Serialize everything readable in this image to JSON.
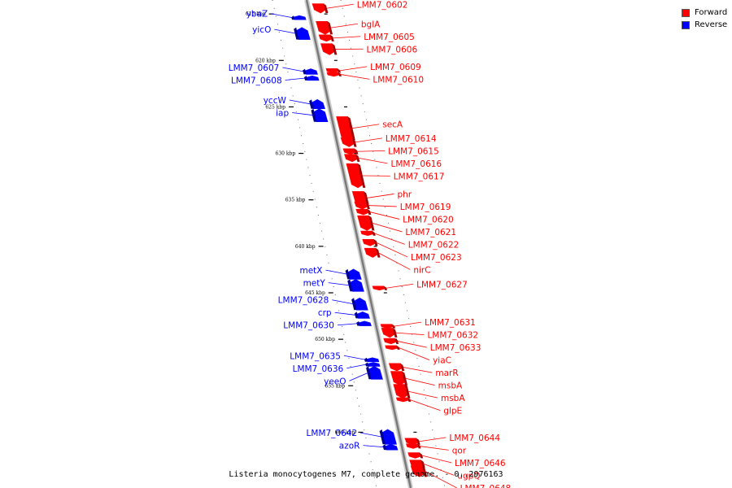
{
  "caption": "Listeria monocytogenes M7, complete genome. - 0..2976163",
  "legend": [
    {
      "label": "Forward",
      "color": "#ff0000"
    },
    {
      "label": "Reverse",
      "color": "#0000ff"
    }
  ],
  "colors": {
    "forward": "#ff0000",
    "reverse": "#0000ff",
    "backbone": "#999999"
  },
  "ticks": [
    {
      "kbp": 615,
      "label": "615 kbp"
    },
    {
      "kbp": 620,
      "label": "620 kbp"
    },
    {
      "kbp": 625,
      "label": "625 kbp"
    },
    {
      "kbp": 630,
      "label": "630 kbp"
    },
    {
      "kbp": 635,
      "label": "635 kbp"
    },
    {
      "kbp": 640,
      "label": "640 kbp"
    },
    {
      "kbp": 645,
      "label": "645 kbp"
    },
    {
      "kbp": 650,
      "label": "650 kbp"
    },
    {
      "kbp": 655,
      "label": "655 kbp"
    },
    {
      "kbp": 660,
      "label": "660 kbp"
    }
  ],
  "genes": [
    {
      "name": "LMM7_0602",
      "strand": "forward",
      "kbp": 614.4,
      "len": 1.0
    },
    {
      "name": "bglA",
      "strand": "forward",
      "kbp": 616.5,
      "len": 1.4
    },
    {
      "name": "LMM7_0605",
      "strand": "forward",
      "kbp": 617.6,
      "len": 0.7
    },
    {
      "name": "LMM7_0606",
      "strand": "forward",
      "kbp": 618.8,
      "len": 1.2
    },
    {
      "name": "LMM7_0609",
      "strand": "forward",
      "kbp": 621.1,
      "len": 0.3
    },
    {
      "name": "LMM7_0610",
      "strand": "forward",
      "kbp": 621.5,
      "len": 0.4
    },
    {
      "name": "secA",
      "strand": "forward",
      "kbp": 627.3,
      "len": 2.5
    },
    {
      "name": "LMM7_0614",
      "strand": "forward",
      "kbp": 628.8,
      "len": 1.0
    },
    {
      "name": "LMM7_0615",
      "strand": "forward",
      "kbp": 629.8,
      "len": 0.6
    },
    {
      "name": "LMM7_0616",
      "strand": "forward",
      "kbp": 630.5,
      "len": 0.8
    },
    {
      "name": "LMM7_0617",
      "strand": "forward",
      "kbp": 632.4,
      "len": 2.6
    },
    {
      "name": "phr",
      "strand": "forward",
      "kbp": 634.8,
      "len": 1.4
    },
    {
      "name": "LMM7_0619",
      "strand": "forward",
      "kbp": 635.6,
      "len": 0.8
    },
    {
      "name": "LMM7_0620",
      "strand": "forward",
      "kbp": 636.3,
      "len": 0.6
    },
    {
      "name": "LMM7_0621",
      "strand": "forward",
      "kbp": 637.5,
      "len": 1.6
    },
    {
      "name": "LMM7_0622",
      "strand": "forward",
      "kbp": 638.6,
      "len": 0.5
    },
    {
      "name": "LMM7_0623",
      "strand": "forward",
      "kbp": 639.6,
      "len": 0.7
    },
    {
      "name": "nirC",
      "strand": "forward",
      "kbp": 640.7,
      "len": 1.0
    },
    {
      "name": "LMM7_0627",
      "strand": "forward",
      "kbp": 644.5,
      "len": 0.4
    },
    {
      "name": "LMM7_0631",
      "strand": "forward",
      "kbp": 648.6,
      "len": 0.3
    },
    {
      "name": "LMM7_0632",
      "strand": "forward",
      "kbp": 649.3,
      "len": 1.0
    },
    {
      "name": "LMM7_0633",
      "strand": "forward",
      "kbp": 650.2,
      "len": 0.6
    },
    {
      "name": "yiaC",
      "strand": "forward",
      "kbp": 650.9,
      "len": 0.4
    },
    {
      "name": "marR",
      "strand": "forward",
      "kbp": 653.0,
      "len": 0.8
    },
    {
      "name": "msbA",
      "strand": "forward",
      "kbp": 654.2,
      "len": 1.5
    },
    {
      "name": "msbA",
      "strand": "forward",
      "kbp": 655.6,
      "len": 1.5
    },
    {
      "name": "glpE",
      "strand": "forward",
      "kbp": 656.5,
      "len": 0.4
    },
    {
      "name": "LMM7_0644",
      "strand": "forward",
      "kbp": 661.0,
      "len": 0.7
    },
    {
      "name": "qor",
      "strand": "forward",
      "kbp": 661.5,
      "len": 0.5
    },
    {
      "name": "LMM7_0646",
      "strand": "forward",
      "kbp": 662.5,
      "len": 0.6
    },
    {
      "name": "ugpQ",
      "strand": "forward",
      "kbp": 663.4,
      "len": 0.8
    },
    {
      "name": "LMM7_0648",
      "strand": "forward",
      "kbp": 664.2,
      "len": 1.2
    },
    {
      "name": "ybaZ",
      "strand": "reverse",
      "kbp": 615.4,
      "len": 0.3
    },
    {
      "name": "yicO",
      "strand": "reverse",
      "kbp": 617.1,
      "len": 1.3
    },
    {
      "name": "LMM7_0607",
      "strand": "reverse",
      "kbp": 621.2,
      "len": 0.6
    },
    {
      "name": "LMM7_0608",
      "strand": "reverse",
      "kbp": 621.9,
      "len": 0.5
    },
    {
      "name": "yccW",
      "strand": "reverse",
      "kbp": 624.7,
      "len": 1.0
    },
    {
      "name": "iap",
      "strand": "reverse",
      "kbp": 625.9,
      "len": 1.4
    },
    {
      "name": "metX",
      "strand": "reverse",
      "kbp": 643.0,
      "len": 1.1
    },
    {
      "name": "metY",
      "strand": "reverse",
      "kbp": 644.2,
      "len": 1.3
    },
    {
      "name": "LMM7_0628",
      "strand": "reverse",
      "kbp": 646.2,
      "len": 1.3
    },
    {
      "name": "crp",
      "strand": "reverse",
      "kbp": 647.4,
      "len": 0.7
    },
    {
      "name": "LMM7_0630",
      "strand": "reverse",
      "kbp": 648.3,
      "len": 0.5
    },
    {
      "name": "LMM7_0635",
      "strand": "reverse",
      "kbp": 652.2,
      "len": 0.4
    },
    {
      "name": "LMM7_0636",
      "strand": "reverse",
      "kbp": 652.7,
      "len": 0.4
    },
    {
      "name": "yeeO",
      "strand": "reverse",
      "kbp": 653.6,
      "len": 1.4
    },
    {
      "name": "LMM7_0642",
      "strand": "reverse",
      "kbp": 660.5,
      "len": 1.6
    },
    {
      "name": "azoR",
      "strand": "reverse",
      "kbp": 661.6,
      "len": 0.6
    }
  ]
}
